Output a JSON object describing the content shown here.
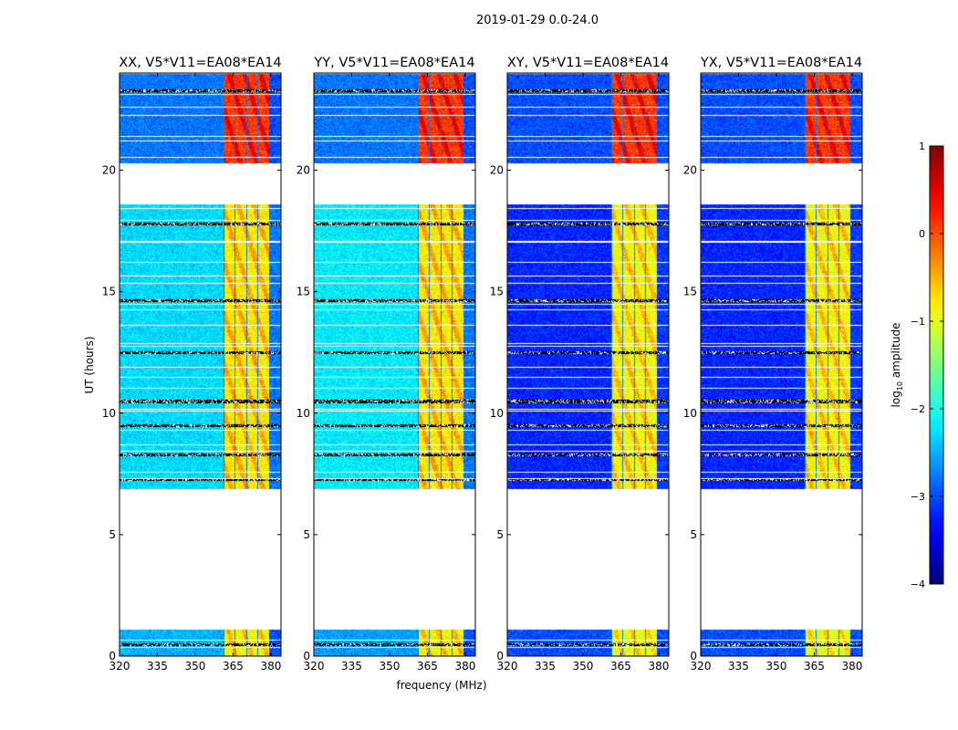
{
  "chart_data": {
    "type": "heatmap",
    "suptitle": "2019-01-29 0.0-24.0",
    "xlabel": "frequency (MHz)",
    "ylabel": "UT (hours)",
    "xlim": [
      320,
      384
    ],
    "ylim": [
      0,
      24
    ],
    "xticks": [
      320,
      335,
      350,
      365,
      380
    ],
    "yticks": [
      0,
      5,
      10,
      15,
      20
    ],
    "colorbar": {
      "label": "log10 amplitude",
      "label_main": "log",
      "label_sub": "10",
      "label_tail": " amplitude",
      "range": [
        -4,
        1
      ],
      "ticks": [
        1,
        0,
        -1,
        -2,
        -3,
        -4
      ],
      "colormap": "jet"
    },
    "time_segments": [
      [
        0,
        1.1
      ],
      [
        6.9,
        18.6
      ],
      [
        20.3,
        24
      ]
    ],
    "flagged_rows_hours": [
      0.5,
      7.3,
      8.3,
      9.5,
      10.5,
      12.5,
      14.65,
      17.8,
      23.3
    ],
    "panels": [
      {
        "title": "XX, V5*V11=EA08*EA14",
        "show_ylabel": true,
        "bands": [
          {
            "f": [
              320,
              361
            ],
            "v": [
              -2.5,
              -2.3,
              -2.8
            ]
          },
          {
            "f": [
              361,
              379
            ],
            "v": [
              -0.9,
              -0.8,
              0.1
            ]
          },
          {
            "f": [
              379,
              384
            ],
            "v": [
              -3.0,
              -2.8,
              -3.0
            ]
          }
        ]
      },
      {
        "title": "YY, V5*V11=EA08*EA14",
        "show_ylabel": false,
        "bands": [
          {
            "f": [
              320,
              361
            ],
            "v": [
              -2.6,
              -2.2,
              -2.8
            ]
          },
          {
            "f": [
              361,
              379
            ],
            "v": [
              -0.9,
              -0.8,
              0.1
            ]
          },
          {
            "f": [
              379,
              384
            ],
            "v": [
              -3.0,
              -2.8,
              -3.0
            ]
          }
        ]
      },
      {
        "title": "XY, V5*V11=EA08*EA14",
        "show_ylabel": false,
        "bands": [
          {
            "f": [
              320,
              361
            ],
            "v": [
              -3.0,
              -3.2,
              -3.0
            ]
          },
          {
            "f": [
              361,
              379
            ],
            "v": [
              -1.0,
              -0.9,
              0.1
            ]
          },
          {
            "f": [
              379,
              384
            ],
            "v": [
              -3.0,
              -3.1,
              -3.0
            ]
          }
        ]
      },
      {
        "title": "YX, V5*V11=EA08*EA14",
        "show_ylabel": false,
        "bands": [
          {
            "f": [
              320,
              361
            ],
            "v": [
              -3.0,
              -3.2,
              -3.0
            ]
          },
          {
            "f": [
              361,
              379
            ],
            "v": [
              -1.0,
              -0.9,
              0.1
            ]
          },
          {
            "f": [
              379,
              384
            ],
            "v": [
              -3.0,
              -3.1,
              -3.0
            ]
          }
        ]
      }
    ]
  }
}
